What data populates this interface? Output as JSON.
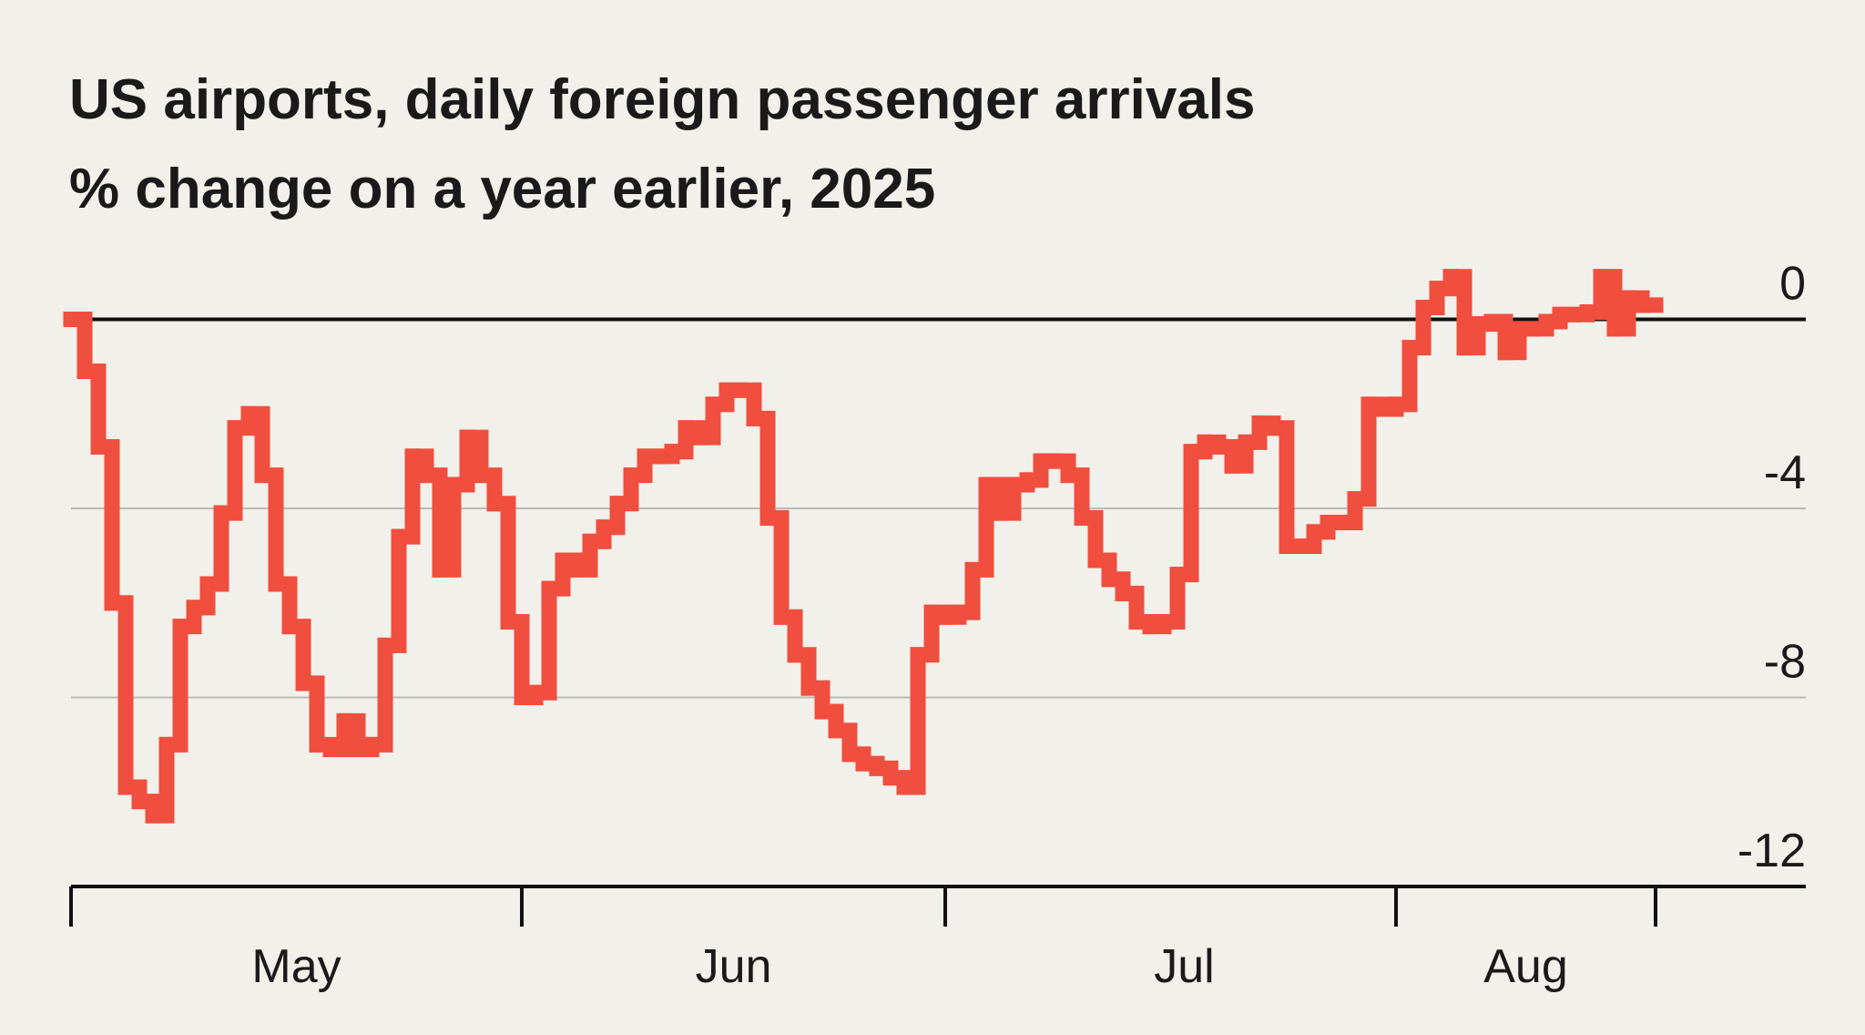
{
  "chart_data": {
    "type": "step",
    "title": "US airports, daily foreign passenger arrivals",
    "subtitle": "% change on a year earlier, 2025",
    "categories": [
      null,
      null,
      null,
      null,
      null,
      null,
      null,
      null,
      null,
      null,
      null,
      null,
      null,
      null,
      null,
      null,
      "May",
      null,
      null,
      null,
      null,
      null,
      null,
      null,
      null,
      null,
      null,
      null,
      null,
      null,
      null,
      null,
      null,
      null,
      null,
      null,
      null,
      null,
      null,
      null,
      null,
      null,
      null,
      null,
      null,
      null,
      null,
      null,
      "Jun",
      null,
      null,
      null,
      null,
      null,
      null,
      null,
      null,
      null,
      null,
      null,
      null,
      null,
      null,
      null,
      null,
      null,
      null,
      null,
      null,
      null,
      null,
      null,
      null,
      null,
      null,
      null,
      null,
      null,
      null,
      null,
      null,
      "Jul",
      null,
      null,
      null,
      null,
      null,
      null,
      null,
      null,
      null,
      null,
      null,
      null,
      null,
      null,
      null,
      null,
      null,
      null,
      null,
      null,
      null,
      null,
      null,
      null,
      "Aug",
      null,
      null,
      null,
      null,
      null,
      null,
      null,
      null,
      null
    ],
    "values": [
      0,
      -1.1,
      -2.7,
      -6,
      -9.9,
      -10.2,
      -10.5,
      -9,
      -6.5,
      -6.1,
      -5.6,
      -4.1,
      -2.3,
      -2,
      -3.3,
      -5.6,
      -6.5,
      -7.7,
      -9,
      -9.1,
      -8.5,
      -9.1,
      -9,
      -6.9,
      -4.6,
      -2.9,
      -3.3,
      -5.3,
      -3.5,
      -2.5,
      -3.3,
      -3.9,
      -6.4,
      -8,
      -7.9,
      -5.7,
      -5.1,
      -5.3,
      -4.7,
      -4.4,
      -3.9,
      -3.3,
      -2.9,
      -2.9,
      -2.8,
      -2.3,
      -2.5,
      -1.8,
      -1.5,
      -1.5,
      -2.1,
      -4.2,
      -6.3,
      -7.1,
      -7.8,
      -8.3,
      -8.7,
      -9.2,
      -9.4,
      -9.5,
      -9.7,
      -9.9,
      -7.1,
      -6.2,
      -6.3,
      -6.2,
      -5.3,
      -3.5,
      -4.1,
      -3.5,
      -3.4,
      -3,
      -3,
      -3.3,
      -4.2,
      -5.1,
      -5.5,
      -5.8,
      -6.4,
      -6.5,
      -6.4,
      -5.4,
      -2.8,
      -2.6,
      -2.7,
      -3.1,
      -2.6,
      -2.2,
      -2.3,
      -4.8,
      -4.8,
      -4.5,
      -4.3,
      -4.3,
      -3.8,
      -1.8,
      -1.9,
      -1.8,
      -0.6,
      0.25,
      0.65,
      0.9,
      -0.6,
      -0.1,
      -0.05,
      -0.7,
      -0.2,
      -0.2,
      -0.05,
      0.1,
      0.1,
      0.15,
      0.9,
      -0.2,
      0.45,
      0.3
    ],
    "color": "#f04e3e",
    "xlim": [
      0,
      127
    ],
    "xticks": [
      0,
      33,
      64,
      97,
      116
    ],
    "ylim": [
      -12,
      1.3
    ],
    "yticks": [
      0,
      -4,
      -8,
      -12
    ],
    "grid": true
  }
}
